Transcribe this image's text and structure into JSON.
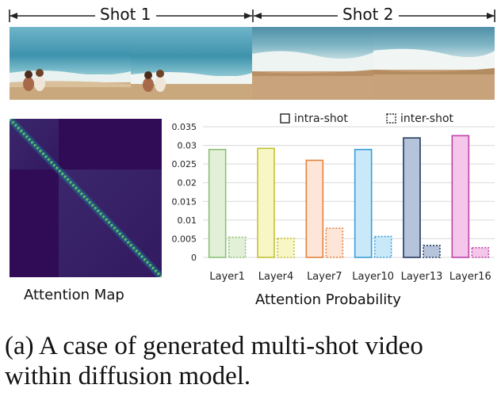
{
  "shots": [
    {
      "label": "Shot 1"
    },
    {
      "label": "Shot 2"
    }
  ],
  "attention_map": {
    "label": "Attention Map"
  },
  "caption": {
    "line1": "(a) A case of generated multi-shot video",
    "line2": "within diffusion model."
  },
  "chart_data": {
    "type": "bar",
    "title": "",
    "xlabel": "Attention Probability",
    "ylabel": "",
    "categories": [
      "Layer1",
      "Layer4",
      "Layer7",
      "Layer10",
      "Layer13",
      "Layer16"
    ],
    "series": [
      {
        "name": "intra-shot",
        "style": "solid",
        "values": [
          0.0289,
          0.0292,
          0.026,
          0.0289,
          0.032,
          0.0326
        ]
      },
      {
        "name": "inter-shot",
        "style": "dotted",
        "values": [
          0.0054,
          0.0051,
          0.0078,
          0.0056,
          0.0032,
          0.0026
        ]
      }
    ],
    "ylim": [
      0,
      0.035
    ],
    "yticks": [
      "0",
      "0.005",
      "0.01",
      "0.015",
      "0.02",
      "0.025",
      "0.03",
      "0.035"
    ],
    "grid": "horizontal",
    "legend_position": "top-right",
    "colors": {
      "Layer1": {
        "fill": "#e2f0d8",
        "stroke": "#8cc177"
      },
      "Layer4": {
        "fill": "#f7f6c4",
        "stroke": "#c2c136"
      },
      "Layer7": {
        "fill": "#fde6d8",
        "stroke": "#e5813b"
      },
      "Layer10": {
        "fill": "#c9e9f9",
        "stroke": "#3e9ed8"
      },
      "Layer13": {
        "fill": "#b5c4db",
        "stroke": "#243a5c"
      },
      "Layer16": {
        "fill": "#f3c6ea",
        "stroke": "#c042a8"
      }
    }
  }
}
